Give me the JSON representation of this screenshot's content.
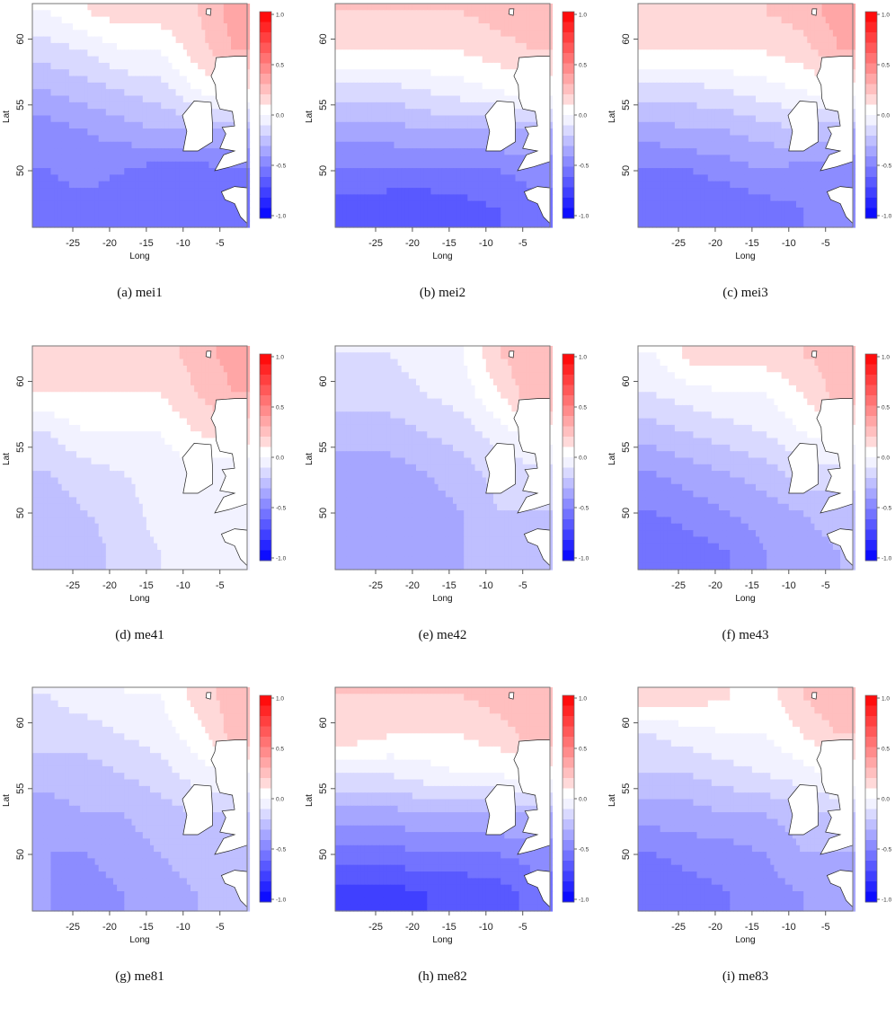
{
  "figure": {
    "axes": {
      "xlabel": "Long",
      "ylabel": "Lat",
      "xticks": [
        -25,
        -20,
        -15,
        -10,
        -5
      ],
      "yticks": [
        50,
        55,
        60
      ],
      "xlim": [
        -30.5,
        -1.3
      ],
      "ylim": [
        45.7,
        62.7
      ]
    },
    "colorbar": {
      "ticks": [
        "1.0",
        "0.5",
        "0.0",
        "-0.5",
        "-1.0"
      ],
      "range": [
        -1,
        1
      ],
      "levels": 20,
      "colors": {
        "low": "#0000ff",
        "mid": "#ffffff",
        "high": "#ff0000"
      }
    },
    "grid_lats": [
      62,
      59,
      56,
      53,
      50,
      47
    ],
    "grid_longs": [
      -28,
      -23,
      -18,
      -13,
      -8,
      -3
    ]
  },
  "chart_data": [
    {
      "type": "heatmap",
      "label": "(a)",
      "title": "mei1",
      "caption": "(a) mei1",
      "values": [
        [
          0,
          0.1,
          0.15,
          0.15,
          0.2,
          0.35
        ],
        [
          -0.15,
          -0.1,
          0,
          0,
          0.15,
          0.3
        ],
        [
          -0.3,
          -0.25,
          -0.2,
          -0.15,
          0,
          0.1
        ],
        [
          -0.45,
          -0.4,
          -0.35,
          -0.3,
          -0.3,
          -0.3
        ],
        [
          -0.5,
          -0.45,
          -0.5,
          -0.55,
          -0.55,
          -0.5
        ],
        [
          -0.55,
          -0.55,
          -0.6,
          -0.6,
          -0.6,
          -0.5
        ]
      ]
    },
    {
      "type": "heatmap",
      "label": "(b)",
      "title": "mei2",
      "caption": "(b) mei2",
      "values": [
        [
          0.2,
          0.2,
          0.2,
          0.2,
          0.25,
          0.3
        ],
        [
          0.1,
          0.1,
          0.1,
          0.1,
          0.15,
          0.2
        ],
        [
          -0.15,
          -0.15,
          -0.1,
          -0.05,
          0,
          0.05
        ],
        [
          -0.35,
          -0.35,
          -0.3,
          -0.3,
          -0.3,
          -0.3
        ],
        [
          -0.5,
          -0.5,
          -0.5,
          -0.5,
          -0.5,
          -0.45
        ],
        [
          -0.65,
          -0.7,
          -0.7,
          -0.65,
          -0.6,
          -0.55
        ]
      ]
    },
    {
      "type": "heatmap",
      "label": "(c)",
      "title": "mei3",
      "caption": "(c) mei3",
      "values": [
        [
          0.15,
          0.15,
          0.15,
          0.2,
          0.25,
          0.35
        ],
        [
          0.1,
          0.1,
          0.1,
          0.1,
          0.15,
          0.3
        ],
        [
          -0.15,
          -0.15,
          -0.1,
          -0.05,
          0,
          0.05
        ],
        [
          -0.35,
          -0.3,
          -0.3,
          -0.25,
          -0.2,
          -0.3
        ],
        [
          -0.5,
          -0.5,
          -0.45,
          -0.4,
          -0.45,
          -0.45
        ],
        [
          -0.6,
          -0.6,
          -0.6,
          -0.55,
          -0.5,
          -0.45
        ]
      ]
    },
    {
      "type": "heatmap",
      "label": "(d)",
      "title": "me41",
      "caption": "(d) me41",
      "values": [
        [
          0.1,
          0.1,
          0.1,
          0.15,
          0.25,
          0.35
        ],
        [
          0.1,
          0.1,
          0.1,
          0.1,
          0.2,
          0.3
        ],
        [
          -0.1,
          0,
          0,
          0,
          0.1,
          0.15
        ],
        [
          -0.2,
          -0.15,
          -0.1,
          -0.05,
          -0.05,
          -0.1
        ],
        [
          -0.25,
          -0.2,
          -0.15,
          -0.05,
          -0.1,
          -0.1
        ],
        [
          -0.25,
          -0.25,
          -0.15,
          -0.1,
          -0.1,
          -0.1
        ]
      ]
    },
    {
      "type": "heatmap",
      "label": "(e)",
      "title": "me42",
      "caption": "(e) me42",
      "values": [
        [
          -0.1,
          -0.1,
          -0.05,
          0,
          0.2,
          0.3
        ],
        [
          -0.15,
          -0.15,
          -0.1,
          -0.05,
          0.1,
          0.3
        ],
        [
          -0.25,
          -0.25,
          -0.2,
          -0.15,
          -0.05,
          0.05
        ],
        [
          -0.35,
          -0.35,
          -0.3,
          -0.25,
          -0.15,
          -0.15
        ],
        [
          -0.35,
          -0.4,
          -0.35,
          -0.3,
          -0.2,
          -0.2
        ],
        [
          -0.35,
          -0.35,
          -0.3,
          -0.3,
          -0.25,
          -0.2
        ]
      ]
    },
    {
      "type": "heatmap",
      "label": "(f)",
      "title": "me43",
      "caption": "(f) me43",
      "values": [
        [
          0,
          0.15,
          0.15,
          0.15,
          0.2,
          0.25
        ],
        [
          -0.1,
          -0.05,
          0,
          0,
          0.1,
          0.25
        ],
        [
          -0.25,
          -0.2,
          -0.15,
          -0.1,
          0,
          0.05
        ],
        [
          -0.4,
          -0.35,
          -0.3,
          -0.25,
          -0.15,
          -0.15
        ],
        [
          -0.5,
          -0.45,
          -0.4,
          -0.35,
          -0.3,
          -0.25
        ],
        [
          -0.6,
          -0.55,
          -0.5,
          -0.4,
          -0.35,
          -0.3
        ]
      ]
    },
    {
      "type": "heatmap",
      "label": "(g)",
      "title": "me81",
      "caption": "(g) me81",
      "values": [
        [
          -0.1,
          -0.05,
          0,
          0,
          0.15,
          0.25
        ],
        [
          -0.15,
          -0.15,
          -0.1,
          -0.05,
          0.05,
          0.25
        ],
        [
          -0.25,
          -0.25,
          -0.2,
          -0.15,
          -0.05,
          0
        ],
        [
          -0.35,
          -0.3,
          -0.3,
          -0.25,
          -0.2,
          -0.2
        ],
        [
          -0.4,
          -0.4,
          -0.35,
          -0.3,
          -0.25,
          -0.25
        ],
        [
          -0.4,
          -0.45,
          -0.4,
          -0.35,
          -0.3,
          -0.3
        ]
      ]
    },
    {
      "type": "heatmap",
      "label": "(h)",
      "title": "me82",
      "caption": "(h) me82",
      "values": [
        [
          0.2,
          0.2,
          0.2,
          0.2,
          0.25,
          0.3
        ],
        [
          0.15,
          0.1,
          0.1,
          0.1,
          0.15,
          0.25
        ],
        [
          -0.1,
          -0.1,
          -0.05,
          0,
          0,
          0.05
        ],
        [
          -0.35,
          -0.35,
          -0.3,
          -0.3,
          -0.3,
          -0.3
        ],
        [
          -0.55,
          -0.55,
          -0.5,
          -0.5,
          -0.5,
          -0.45
        ],
        [
          -0.75,
          -0.75,
          -0.7,
          -0.7,
          -0.65,
          -0.55
        ]
      ]
    },
    {
      "type": "heatmap",
      "label": "(i)",
      "title": "me83",
      "caption": "(i) me83",
      "values": [
        [
          0.15,
          0.15,
          0.1,
          0.05,
          0.2,
          0.3
        ],
        [
          -0.1,
          -0.05,
          0,
          0,
          0.1,
          0.2
        ],
        [
          -0.2,
          -0.2,
          -0.15,
          -0.1,
          -0.05,
          0.05
        ],
        [
          -0.35,
          -0.35,
          -0.3,
          -0.3,
          -0.25,
          -0.2
        ],
        [
          -0.5,
          -0.45,
          -0.45,
          -0.4,
          -0.3,
          -0.3
        ],
        [
          -0.6,
          -0.55,
          -0.5,
          -0.45,
          -0.4,
          -0.3
        ]
      ]
    }
  ]
}
